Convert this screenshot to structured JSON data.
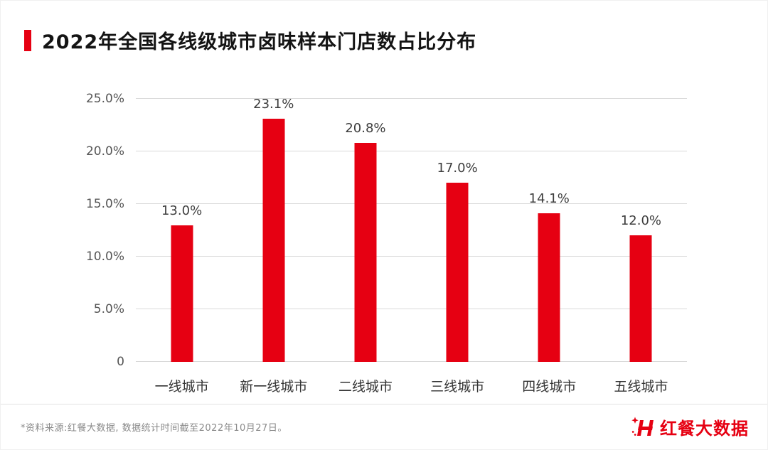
{
  "accent_color": "#e60012",
  "header": {
    "title": "2022年全国各线级城市卤味样本门店数占比分布"
  },
  "chart_data": {
    "type": "bar",
    "title": "2022年全国各线级城市卤味样本门店数占比分布",
    "categories": [
      "一线城市",
      "新一线城市",
      "二线城市",
      "三线城市",
      "四线城市",
      "五线城市"
    ],
    "values": [
      13.0,
      23.1,
      20.8,
      17.0,
      14.1,
      12.0
    ],
    "value_labels": [
      "13.0%",
      "23.1%",
      "20.8%",
      "17.0%",
      "14.1%",
      "12.0%"
    ],
    "xlabel": "",
    "ylabel": "",
    "ylim": [
      0,
      25
    ],
    "yticks": [
      {
        "value": 25,
        "label": "25.0%"
      },
      {
        "value": 20,
        "label": "20.0%"
      },
      {
        "value": 15,
        "label": "15.0%"
      },
      {
        "value": 10,
        "label": "10.0%"
      },
      {
        "value": 5,
        "label": "5.0%"
      },
      {
        "value": 0,
        "label": "0"
      }
    ],
    "grid": true,
    "legend": false,
    "bar_color": "#e60012"
  },
  "footer": {
    "source_note": "*资料来源:红餐大数据, 数据统计时间截至2022年10月27日。",
    "brand": "红餐大数据"
  }
}
